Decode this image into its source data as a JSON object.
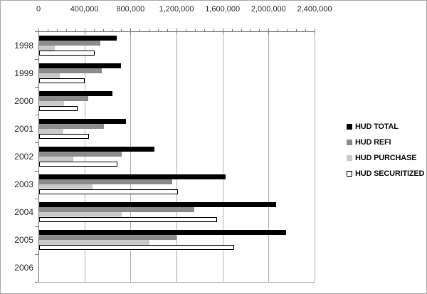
{
  "chart_data": {
    "type": "bar",
    "orientation": "horizontal",
    "title": "",
    "categories": [
      "1998",
      "1999",
      "2000",
      "2001",
      "2002",
      "2003",
      "2004",
      "2005",
      "2006"
    ],
    "series": [
      {
        "name": "HUD TOTAL",
        "color": "#000000",
        "border": "#000000",
        "values": [
          680000,
          715000,
          645000,
          760000,
          1010000,
          1625000,
          2065000,
          2155000,
          0
        ]
      },
      {
        "name": "HUD REFI",
        "color": "#8c8c8c",
        "border": "#8c8c8c",
        "values": [
          540000,
          550000,
          430000,
          570000,
          725000,
          1165000,
          1355000,
          1200000,
          0
        ]
      },
      {
        "name": "HUD PURCHASE",
        "color": "#c9c9c9",
        "border": "#c9c9c9",
        "values": [
          145000,
          185000,
          225000,
          215000,
          300000,
          470000,
          725000,
          965000,
          0
        ]
      },
      {
        "name": "HUD SECURITIZED",
        "color": "#ffffff",
        "border": "#000000",
        "values": [
          490000,
          405000,
          340000,
          440000,
          685000,
          1210000,
          1550000,
          1700000,
          0
        ]
      }
    ],
    "x_axis": {
      "position": "top",
      "min": 0,
      "max": 2400000,
      "major_unit": 400000,
      "minor_unit": 80000,
      "tick_labels": [
        "0",
        "400,000",
        "800,000",
        "1,200,000",
        "1,600,000",
        "2,000,000",
        "2,400,000"
      ]
    },
    "grid": true,
    "legend_position": "right"
  },
  "colors": {
    "gridline": "#b3b3b3",
    "axis": "#808080",
    "text": "#2e2e2e",
    "background": "#ffffff",
    "frame_border": "#aaaaaa"
  }
}
